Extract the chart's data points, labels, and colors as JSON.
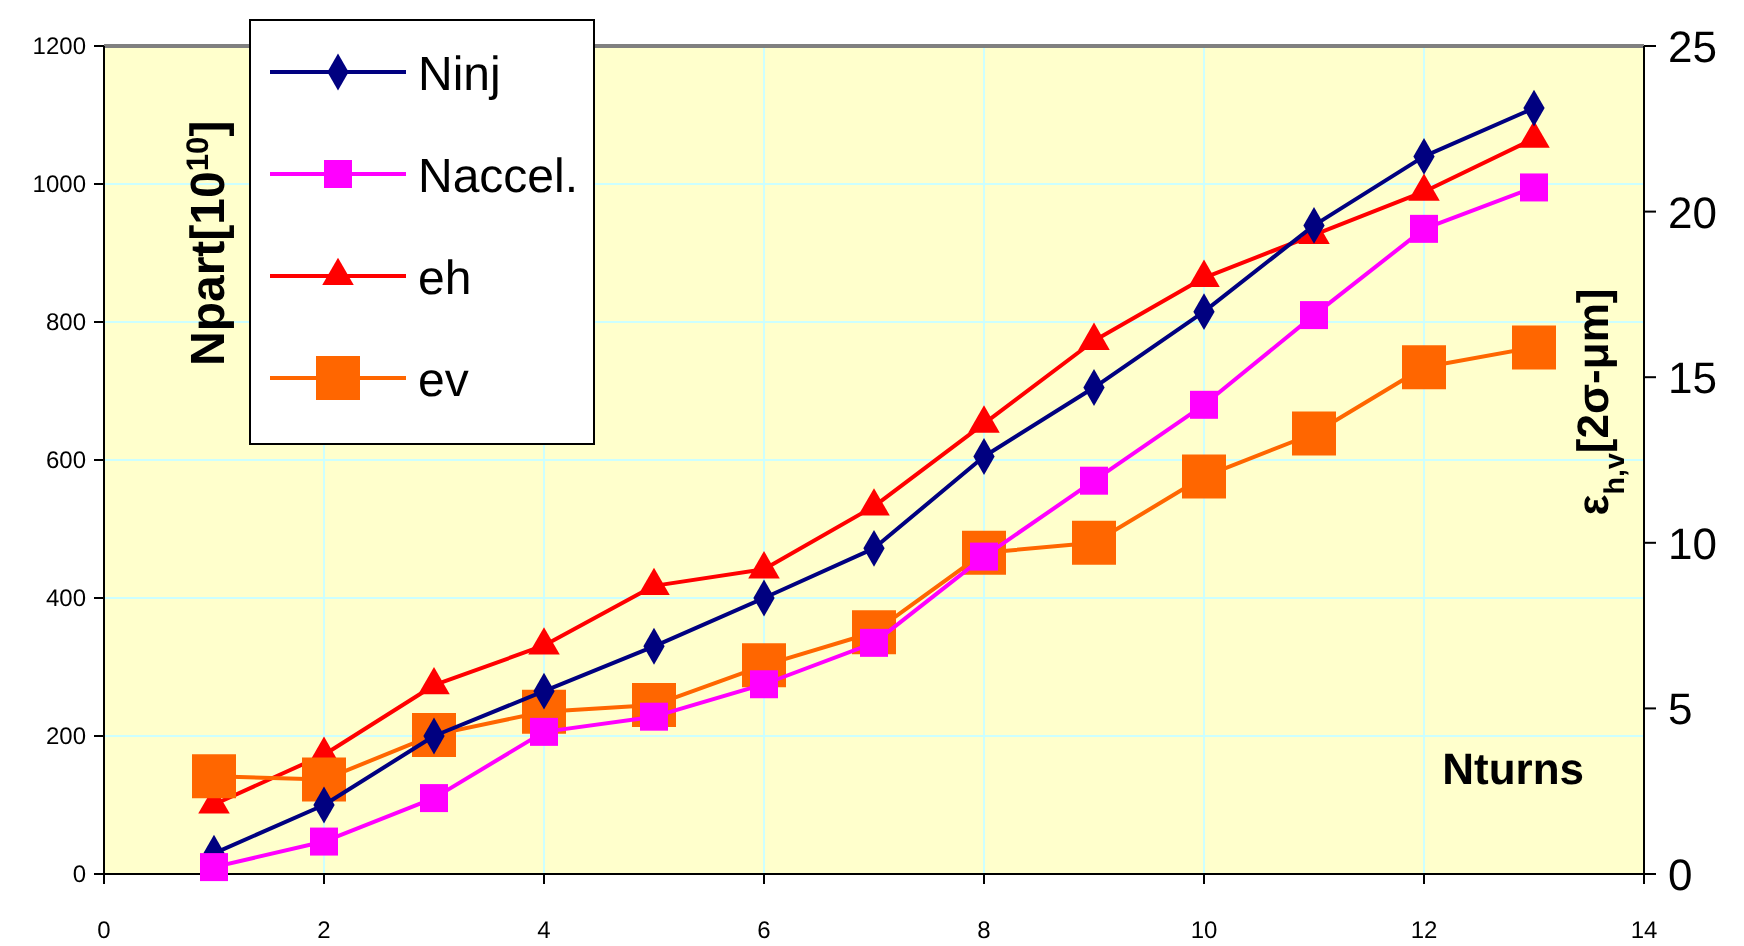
{
  "chart_data": {
    "type": "line",
    "xlabel": "Nturns",
    "ylabel": "Npart[10$^{10}$]",
    "y2label": "ε$_{h,v}$[2σ-μm]",
    "x": [
      1,
      2,
      3,
      4,
      5,
      6,
      7,
      8,
      9,
      10,
      11,
      12,
      13
    ],
    "xlim": [
      0,
      14
    ],
    "xticks": [
      0,
      2,
      4,
      6,
      8,
      10,
      12,
      14
    ],
    "ylim": [
      0,
      1200
    ],
    "yticks": [
      0,
      200,
      400,
      600,
      800,
      1000,
      1200
    ],
    "y2lim": [
      0,
      25
    ],
    "y2ticks": [
      0,
      5,
      10,
      15,
      20,
      25
    ],
    "grid": true,
    "legend": "top left",
    "series": [
      {
        "name": "Ninj",
        "color": "#000080",
        "marker": "diamond",
        "values": [
          30,
          100,
          200,
          265,
          330,
          400,
          472,
          605,
          705,
          815,
          940,
          1040,
          1110
        ]
      },
      {
        "name": "Naccel.",
        "color": "#ff00ff",
        "marker": "square",
        "values": [
          10,
          47,
          110,
          206,
          228,
          275,
          335,
          460,
          570,
          680,
          810,
          935,
          995
        ]
      },
      {
        "name": "eh",
        "color": "#ff0000",
        "marker": "triangle",
        "axis": "y2",
        "values": [
          2.1,
          3.6,
          5.7,
          6.9,
          8.7,
          9.2,
          11.1,
          13.6,
          16.1,
          18.0,
          19.3,
          20.6,
          22.2
        ]
      },
      {
        "name": "ev",
        "color": "#ff6600",
        "marker": "square",
        "axis": "y2",
        "values": [
          2.95,
          2.85,
          4.2,
          4.9,
          5.1,
          6.3,
          7.3,
          9.7,
          10.0,
          12.0,
          13.3,
          15.3,
          15.9
        ]
      }
    ]
  }
}
